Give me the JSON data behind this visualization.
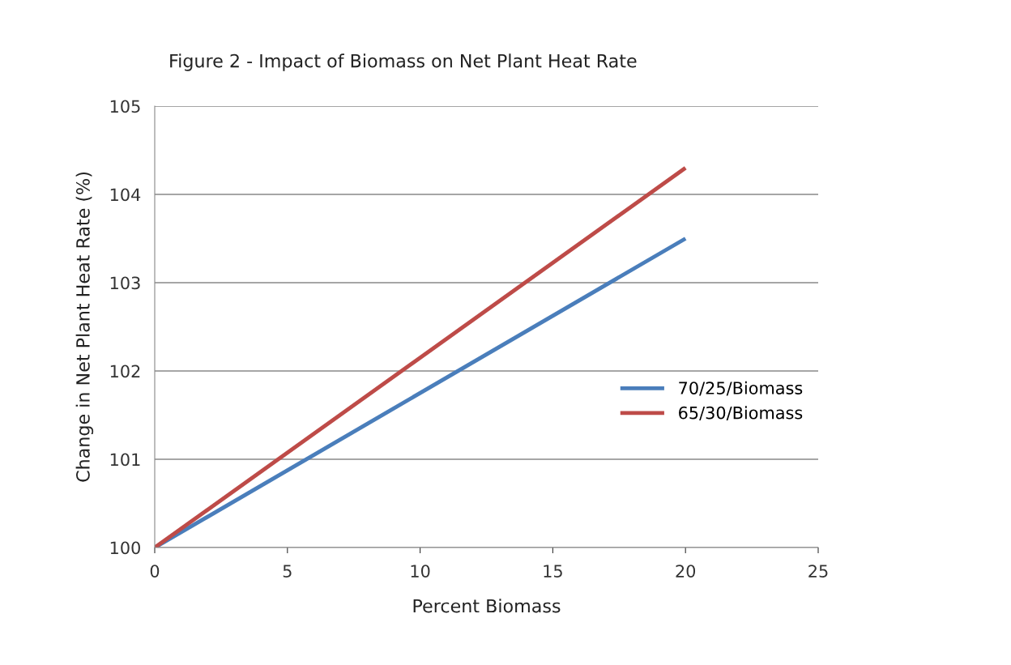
{
  "chart_data": {
    "type": "line",
    "title": "Figure 2 - Impact of Biomass on Net Plant Heat Rate",
    "xlabel": "Percent Biomass",
    "ylabel": "Change in Net Plant Heat Rate (%)",
    "series": [
      {
        "name": "70/25/Biomass",
        "color": "#4a7ebb",
        "values": [
          100,
          103.5
        ]
      },
      {
        "name": "65/30/Biomass",
        "color": "#be4b48",
        "values": [
          100,
          104.3
        ]
      }
    ],
    "x": [
      0,
      20
    ],
    "xlim": [
      0,
      25
    ],
    "xticks": [
      0,
      5,
      10,
      15,
      20,
      25
    ],
    "ylim": [
      100,
      105
    ],
    "yticks": [
      100,
      101,
      102,
      103,
      104,
      105
    ],
    "grid": "y",
    "legend": "right",
    "marker": "none",
    "line_style": "solid"
  }
}
